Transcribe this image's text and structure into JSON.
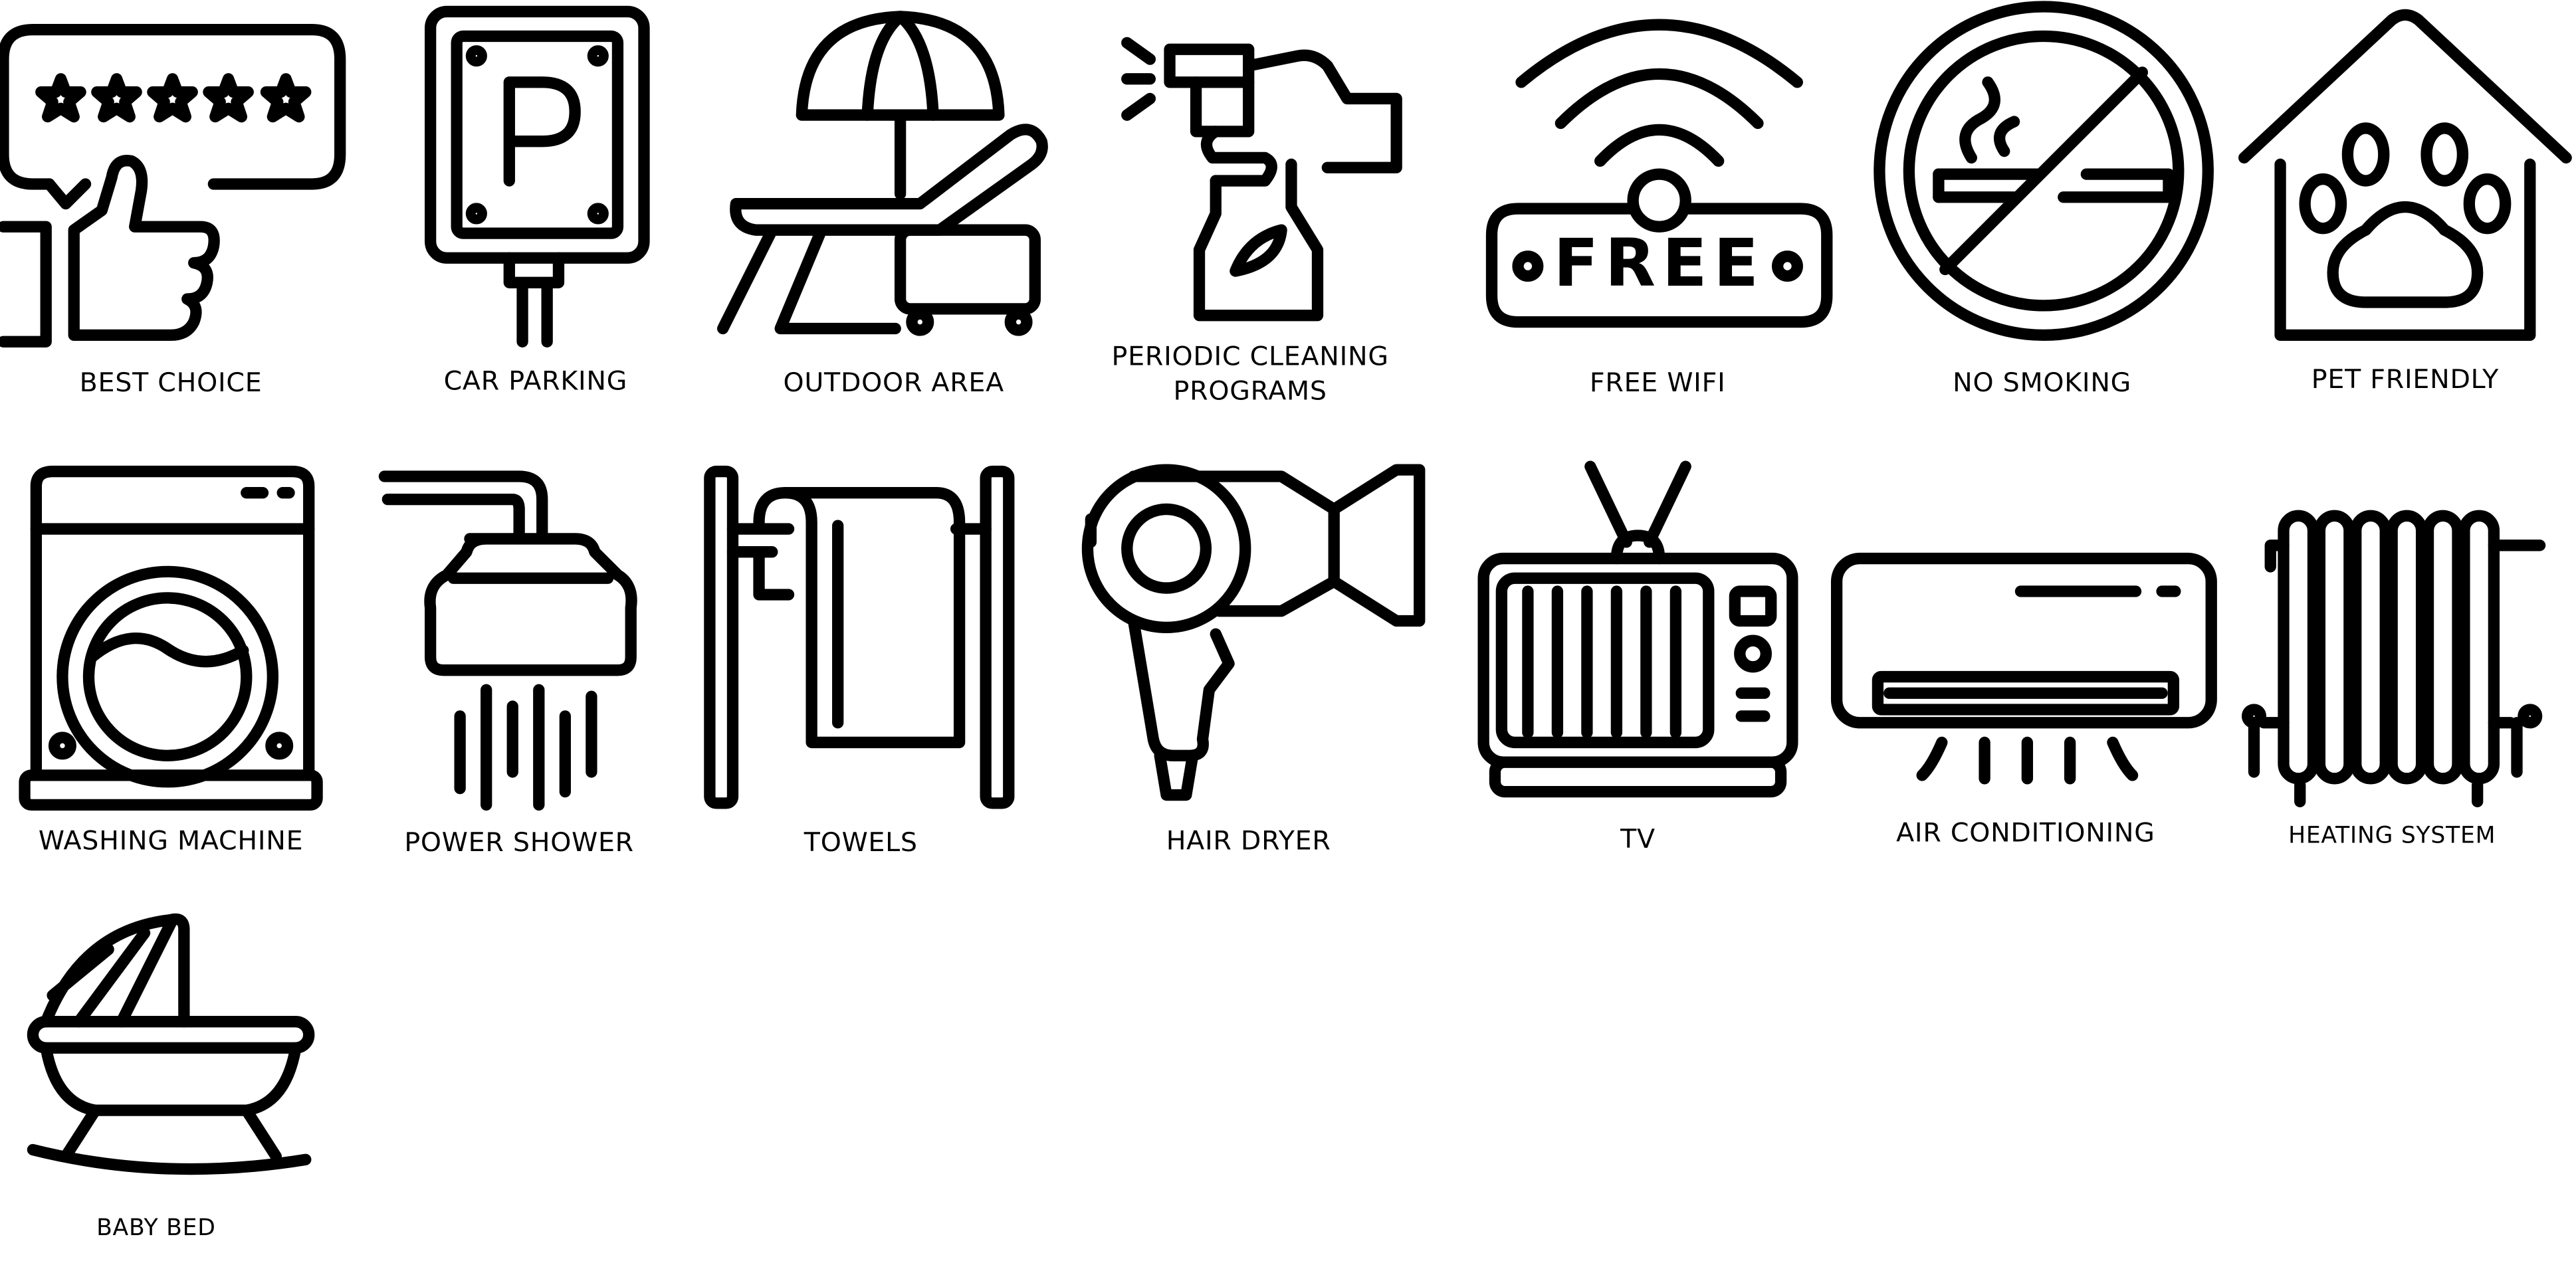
{
  "icons": [
    {
      "label": [
        "BEST CHOICE"
      ]
    },
    {
      "label": [
        "CAR PARKING"
      ]
    },
    {
      "label": [
        "OUTDOOR AREA"
      ]
    },
    {
      "label": [
        "PERIODIC CLEANING",
        "PROGRAMS"
      ]
    },
    {
      "label": [
        "FREE WIFI"
      ],
      "inner_text": "FREE"
    },
    {
      "label": [
        "NO SMOKING"
      ]
    },
    {
      "label": [
        "PET FRIENDLY"
      ]
    },
    {
      "label": [
        "WASHING MACHINE"
      ]
    },
    {
      "label": [
        "POWER SHOWER"
      ]
    },
    {
      "label": [
        "TOWELS"
      ]
    },
    {
      "label": [
        "HAIR DRYER"
      ]
    },
    {
      "label": [
        "TV"
      ]
    },
    {
      "label": [
        "AIR CONDITIONING"
      ]
    },
    {
      "label": [
        "HEATING SYSTEM"
      ]
    },
    {
      "label": [
        "BABY BED"
      ]
    }
  ]
}
